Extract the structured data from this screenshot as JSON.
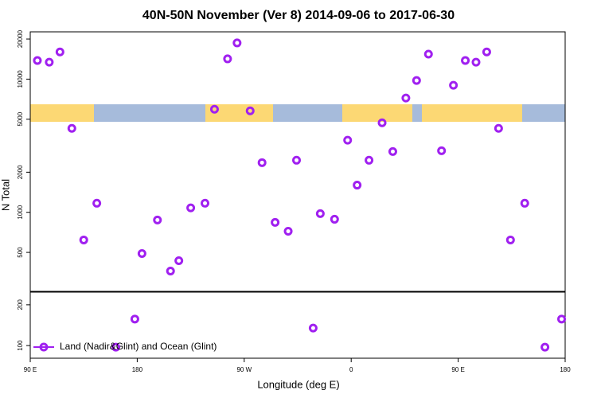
{
  "chart_data": [
    {
      "type": "scatter",
      "title": "40N-50N November (Ver 8)   2014-09-06 to 2017-06-30",
      "ylabel": "N Total",
      "log_y": true,
      "xlim": [
        90,
        540
      ],
      "ylim": [
        255,
        22650
      ],
      "yticks": [
        500,
        1000,
        2000,
        5000,
        10000,
        20000
      ],
      "legend": "bottom-left",
      "series": [
        {
          "name": "Land (Nadir&Glint) and Ocean (Glint)",
          "color": "#a020f0",
          "x": [
            96,
            106,
            115,
            125,
            135,
            146,
            184,
            197,
            208,
            215,
            225,
            237,
            245,
            256,
            264,
            275,
            285,
            296,
            307,
            314,
            334,
            346,
            357,
            365,
            375,
            386,
            395,
            406,
            415,
            425,
            436,
            446,
            456,
            465,
            474,
            484,
            494,
            506
          ],
          "values": [
            13800,
            13400,
            16000,
            4270,
            620,
            1170,
            490,
            875,
            362,
            433,
            1080,
            1170,
            5940,
            14200,
            18700,
            5780,
            2360,
            840,
            721,
            2460,
            977,
            887,
            3480,
            1600,
            2460,
            4700,
            2860,
            7210,
            9770,
            15400,
            2900,
            8990,
            13800,
            13400,
            16000,
            4270,
            620,
            1170
          ]
        }
      ]
    },
    {
      "type": "scatter",
      "xlabel": "Longitude (deg E)",
      "log_y": false,
      "xlim": [
        90,
        540
      ],
      "ylim": [
        69,
        231
      ],
      "yticks": [
        100,
        200
      ],
      "xticks": [
        {
          "value": 90,
          "label": "90 E"
        },
        180,
        {
          "value": 270,
          "label": "90 W"
        },
        {
          "value": 360,
          "label": "0"
        },
        {
          "value": 450,
          "label": "90 E"
        },
        {
          "value": 540,
          "label": "180"
        }
      ],
      "series": [
        {
          "color": "#a020f0",
          "x": [
            162,
            178,
            328,
            523,
            537
          ],
          "values": [
            96,
            165,
            143,
            96,
            165
          ]
        }
      ]
    }
  ]
}
